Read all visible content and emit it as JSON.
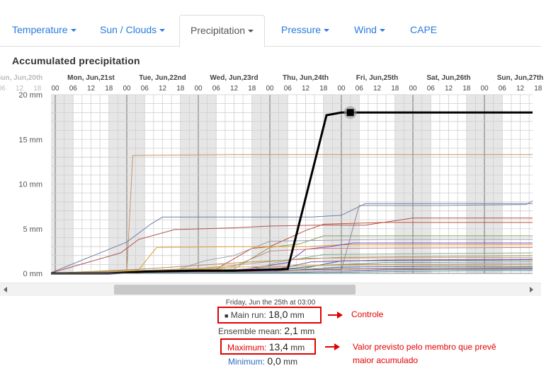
{
  "tabs": [
    {
      "label": "Temperature",
      "caret": true,
      "active": false
    },
    {
      "label": "Sun / Clouds",
      "caret": true,
      "active": false
    },
    {
      "label": "Precipitation",
      "caret": true,
      "active": true
    },
    {
      "label": "Pressure",
      "caret": true,
      "active": false
    },
    {
      "label": "Wind",
      "caret": true,
      "active": false
    },
    {
      "label": "CAPE",
      "caret": false,
      "active": false
    }
  ],
  "colors": {
    "tab_link": "#2a7ae2",
    "main_run": "#000000",
    "annotation": "#e30000",
    "minimum_label": "#2a6fc9",
    "maximum_label": "#e30000"
  },
  "chart_data": {
    "type": "line",
    "title": "Accumulated precipitation",
    "unit": "mm",
    "ylim": [
      0,
      20
    ],
    "yticks": [
      "0 mm",
      "5 mm",
      "10 mm",
      "15 mm",
      "20 mm"
    ],
    "ytick_values": [
      0,
      5,
      10,
      15,
      20
    ],
    "days": [
      "Sun, Jun,20th",
      "Mon, Jun,21st",
      "Tue, Jun,22nd",
      "Wed, Jun,23rd",
      "Thu, Jun,24th",
      "Fri, Jun,25th",
      "Sat, Jun,26th",
      "Sun, Jun,27th"
    ],
    "hour_ticks": [
      "00",
      "06",
      "12",
      "18"
    ],
    "x_hours_range": [
      -6,
      162
    ],
    "grid": true,
    "main_run": {
      "name": "Main run",
      "color": "#000000",
      "points": [
        [
          -2,
          0
        ],
        [
          18,
          0
        ],
        [
          30,
          0.2
        ],
        [
          48,
          0.3
        ],
        [
          60,
          0.3
        ],
        [
          70,
          0.4
        ],
        [
          78,
          0.5
        ],
        [
          91,
          17.7
        ],
        [
          96,
          18.0
        ],
        [
          162,
          18.0
        ]
      ]
    },
    "members": [
      {
        "color": "#c8956a",
        "points": [
          [
            -2,
            0
          ],
          [
            24,
            0.1
          ],
          [
            26,
            13.2
          ],
          [
            60,
            13.3
          ],
          [
            110,
            13.3
          ],
          [
            162,
            13.3
          ]
        ]
      },
      {
        "color": "#6b7fa8",
        "points": [
          [
            -2,
            0
          ],
          [
            24,
            3.5
          ],
          [
            32,
            5.5
          ],
          [
            36,
            6.3
          ],
          [
            60,
            6.3
          ],
          [
            86,
            6.3
          ],
          [
            96,
            6.5
          ],
          [
            104,
            7.8
          ],
          [
            130,
            7.8
          ],
          [
            162,
            7.8
          ]
        ]
      },
      {
        "color": "#8a8aa0",
        "points": [
          [
            -2,
            0
          ],
          [
            96,
            0.4
          ],
          [
            102,
            7.6
          ],
          [
            130,
            7.6
          ],
          [
            158,
            7.7
          ],
          [
            162,
            8.5
          ]
        ]
      },
      {
        "color": "#b05050",
        "points": [
          [
            -2,
            0
          ],
          [
            22,
            2.3
          ],
          [
            28,
            3.8
          ],
          [
            40,
            4.9
          ],
          [
            60,
            5.1
          ],
          [
            72,
            5.3
          ],
          [
            88,
            5.4
          ],
          [
            104,
            5.4
          ],
          [
            120,
            6.2
          ],
          [
            162,
            6.2
          ]
        ]
      },
      {
        "color": "#c05030",
        "points": [
          [
            -2,
            0
          ],
          [
            54,
            0.5
          ],
          [
            66,
            2.8
          ],
          [
            72,
            3.0
          ],
          [
            84,
            4.8
          ],
          [
            90,
            5.5
          ],
          [
            110,
            5.7
          ],
          [
            162,
            5.7
          ]
        ]
      },
      {
        "color": "#80a050",
        "points": [
          [
            -2,
            0
          ],
          [
            60,
            0.5
          ],
          [
            72,
            2.9
          ],
          [
            82,
            3.3
          ],
          [
            90,
            4.2
          ],
          [
            110,
            4.2
          ],
          [
            162,
            4.2
          ]
        ]
      },
      {
        "color": "#9a9ab8",
        "points": [
          [
            -2,
            0
          ],
          [
            40,
            0.3
          ],
          [
            50,
            1.4
          ],
          [
            60,
            2.0
          ],
          [
            72,
            3.6
          ],
          [
            90,
            3.7
          ],
          [
            110,
            3.8
          ],
          [
            162,
            3.8
          ]
        ]
      },
      {
        "color": "#e0a030",
        "points": [
          [
            -2,
            0
          ],
          [
            28,
            0.4
          ],
          [
            34,
            2.9
          ],
          [
            60,
            3.0
          ],
          [
            84,
            3.0
          ],
          [
            96,
            3.2
          ],
          [
            162,
            3.2
          ]
        ]
      },
      {
        "color": "#7b3fb8",
        "points": [
          [
            -2,
            0
          ],
          [
            60,
            0.3
          ],
          [
            78,
            1.2
          ],
          [
            84,
            2.7
          ],
          [
            92,
            3.0
          ],
          [
            100,
            3.4
          ],
          [
            162,
            3.4
          ]
        ]
      },
      {
        "color": "#d08080",
        "points": [
          [
            -2,
            0
          ],
          [
            48,
            0.2
          ],
          [
            60,
            0.8
          ],
          [
            72,
            2.5
          ],
          [
            90,
            2.8
          ],
          [
            162,
            2.9
          ]
        ]
      },
      {
        "color": "#7faf8f",
        "points": [
          [
            -2,
            0
          ],
          [
            66,
            0.3
          ],
          [
            74,
            1.2
          ],
          [
            90,
            2.1
          ],
          [
            120,
            2.2
          ],
          [
            162,
            2.3
          ]
        ]
      },
      {
        "color": "#b09060",
        "points": [
          [
            -2,
            0
          ],
          [
            30,
            0.5
          ],
          [
            48,
            0.9
          ],
          [
            66,
            1.3
          ],
          [
            96,
            1.8
          ],
          [
            162,
            2.0
          ]
        ]
      },
      {
        "color": "#4a6a9a",
        "points": [
          [
            -2,
            0
          ],
          [
            60,
            0.1
          ],
          [
            84,
            0.6
          ],
          [
            96,
            1.4
          ],
          [
            162,
            1.5
          ]
        ]
      },
      {
        "color": "#5ea05e",
        "points": [
          [
            -2,
            0
          ],
          [
            66,
            0.2
          ],
          [
            90,
            0.9
          ],
          [
            110,
            1.2
          ],
          [
            162,
            1.3
          ]
        ]
      },
      {
        "color": "#c07ac0",
        "points": [
          [
            -2,
            0
          ],
          [
            54,
            0.3
          ],
          [
            78,
            0.8
          ],
          [
            102,
            1.0
          ],
          [
            162,
            1.1
          ]
        ]
      },
      {
        "color": "#d4b040",
        "points": [
          [
            -2,
            0
          ],
          [
            36,
            0.4
          ],
          [
            60,
            0.7
          ],
          [
            90,
            0.9
          ],
          [
            162,
            1.0
          ]
        ]
      },
      {
        "color": "#3f5fa0",
        "points": [
          [
            -2,
            0
          ],
          [
            72,
            0.2
          ],
          [
            96,
            0.7
          ],
          [
            130,
            0.8
          ],
          [
            162,
            0.8
          ]
        ]
      },
      {
        "color": "#a0c0a0",
        "points": [
          [
            -2,
            0
          ],
          [
            48,
            0.1
          ],
          [
            84,
            0.4
          ],
          [
            120,
            0.6
          ],
          [
            162,
            0.7
          ]
        ]
      },
      {
        "color": "#906030",
        "points": [
          [
            -2,
            0
          ],
          [
            60,
            0.2
          ],
          [
            96,
            0.5
          ],
          [
            162,
            0.6
          ]
        ]
      },
      {
        "color": "#6060c0",
        "points": [
          [
            -2,
            0
          ],
          [
            78,
            0.1
          ],
          [
            110,
            0.4
          ],
          [
            162,
            0.5
          ]
        ]
      },
      {
        "color": "#c0a0c0",
        "points": [
          [
            -2,
            0
          ],
          [
            84,
            0.2
          ],
          [
            130,
            0.4
          ],
          [
            162,
            0.4
          ]
        ]
      },
      {
        "color": "#50a0a0",
        "points": [
          [
            -2,
            0
          ],
          [
            90,
            0.1
          ],
          [
            140,
            0.3
          ],
          [
            162,
            0.3
          ]
        ]
      },
      {
        "color": "#8a5aa8",
        "points": [
          [
            -2,
            0
          ],
          [
            72,
            0.3
          ],
          [
            86,
            1.3
          ],
          [
            110,
            1.5
          ],
          [
            162,
            1.6
          ]
        ]
      },
      {
        "color": "#bfa070",
        "points": [
          [
            -2,
            0
          ],
          [
            28,
            0.3
          ],
          [
            50,
            0.6
          ],
          [
            84,
            1.7
          ],
          [
            162,
            1.8
          ]
        ]
      }
    ],
    "selected_marker": {
      "x": 99,
      "y": 18.0
    },
    "tooltip": {
      "date": "Friday, Jun the 25th at 03:00",
      "main_run_label": "Main run:",
      "main_run_value": "18,0",
      "main_run_unit": "mm",
      "mean_label": "Ensemble mean:",
      "mean_value": "2,1",
      "mean_unit": "mm",
      "max_label": "Maximum:",
      "max_value": "13,4",
      "max_unit": "mm",
      "min_label": "Minimum:",
      "min_value": "0,0",
      "min_unit": "mm"
    }
  },
  "annotations": {
    "control": "Controle",
    "max_line1": "Valor previsto pelo membro que prevê",
    "max_line2": "maior acumulado"
  }
}
